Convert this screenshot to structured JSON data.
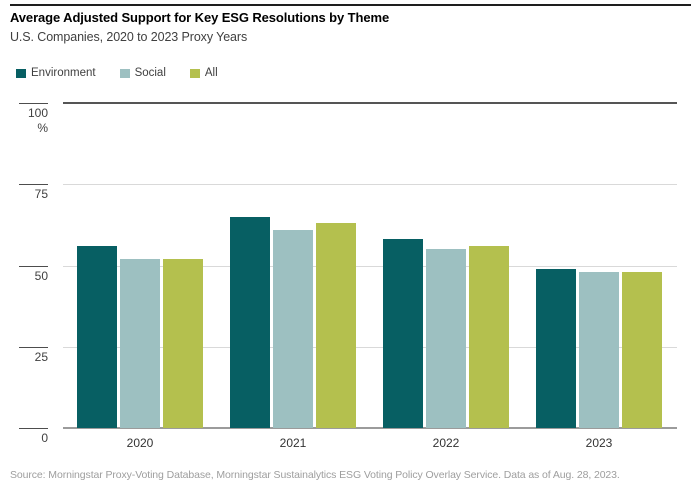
{
  "header": {
    "title": "Average Adjusted Support for Key ESG Resolutions by Theme",
    "subtitle": "U.S. Companies, 2020 to 2023 Proxy Years"
  },
  "chart_data": {
    "type": "bar",
    "categories": [
      "2020",
      "2021",
      "2022",
      "2023"
    ],
    "series": [
      {
        "name": "Environment",
        "color": "#075f63",
        "values": [
          56,
          65,
          58,
          49
        ]
      },
      {
        "name": "Social",
        "color": "#9dc0c1",
        "values": [
          52,
          61,
          55,
          48
        ]
      },
      {
        "name": "All",
        "color": "#b4c04e",
        "values": [
          52,
          63,
          56,
          48
        ]
      }
    ],
    "title": "Average Adjusted Support for Key ESG Resolutions by Theme",
    "subtitle": "U.S. Companies, 2020 to 2023 Proxy Years",
    "ylabel": "",
    "xlabel": "",
    "y_unit": "%",
    "yticks": [
      0,
      25,
      50,
      75,
      100
    ],
    "ylim": [
      0,
      100
    ],
    "grid": true,
    "legend_position": "top-left"
  },
  "colors": {
    "environment": "#075f63",
    "social": "#9dc0c1",
    "all": "#b4c04e",
    "grid_light": "#d9d9d9",
    "grid_dark": "#555555",
    "baseline": "#9b9b9b",
    "top_rule": "#1e1e1e"
  },
  "footer": {
    "source": "Source: Morningstar Proxy-Voting Database, Morningstar Sustainalytics ESG Voting Policy Overlay Service. Data as of Aug. 28, 2023."
  }
}
